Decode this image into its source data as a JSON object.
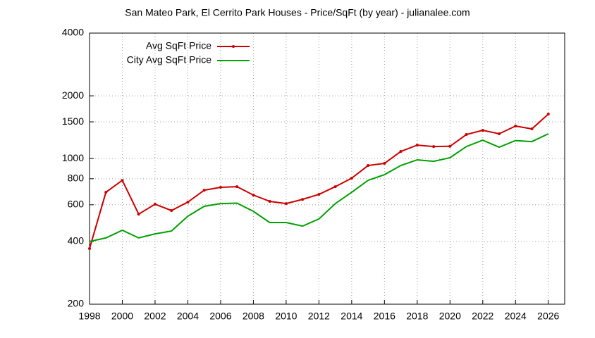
{
  "chart_data": {
    "type": "line",
    "title": "San Mateo Park, El Cerrito Park Houses - Price/SqFt (by year) - julianalee.com",
    "x": [
      1998,
      1999,
      2000,
      2001,
      2002,
      2003,
      2004,
      2005,
      2006,
      2007,
      2008,
      2009,
      2010,
      2011,
      2012,
      2013,
      2014,
      2015,
      2016,
      2017,
      2018,
      2019,
      2020,
      2021,
      2022,
      2023,
      2024,
      2025,
      2026
    ],
    "series": [
      {
        "name": "Avg SqFt Price",
        "color": "#cc0000",
        "marker": true,
        "values": [
          370,
          689,
          786,
          541,
          604,
          563,
          618,
          705,
          728,
          733,
          668,
          623,
          608,
          637,
          673,
          733,
          805,
          926,
          948,
          1082,
          1160,
          1142,
          1145,
          1304,
          1366,
          1315,
          1432,
          1388,
          1634
        ]
      },
      {
        "name": "City Avg SqFt Price",
        "color": "#00a000",
        "marker": false,
        "values": [
          400,
          416,
          453,
          416,
          435,
          449,
          529,
          590,
          608,
          611,
          558,
          493,
          493,
          474,
          513,
          608,
          689,
          786,
          837,
          926,
          986,
          970,
          1009,
          1142,
          1225,
          1134,
          1220,
          1206,
          1315
        ]
      }
    ],
    "xlim": [
      1998,
      2027
    ],
    "xticks": [
      1998,
      2000,
      2002,
      2004,
      2006,
      2008,
      2010,
      2012,
      2014,
      2016,
      2018,
      2020,
      2022,
      2024,
      2026
    ],
    "ylim": [
      200,
      4000
    ],
    "yticks": [
      200,
      400,
      600,
      800,
      1000,
      1500,
      2000,
      4000
    ],
    "log_y": true,
    "grid": true,
    "legend": "top-left"
  }
}
